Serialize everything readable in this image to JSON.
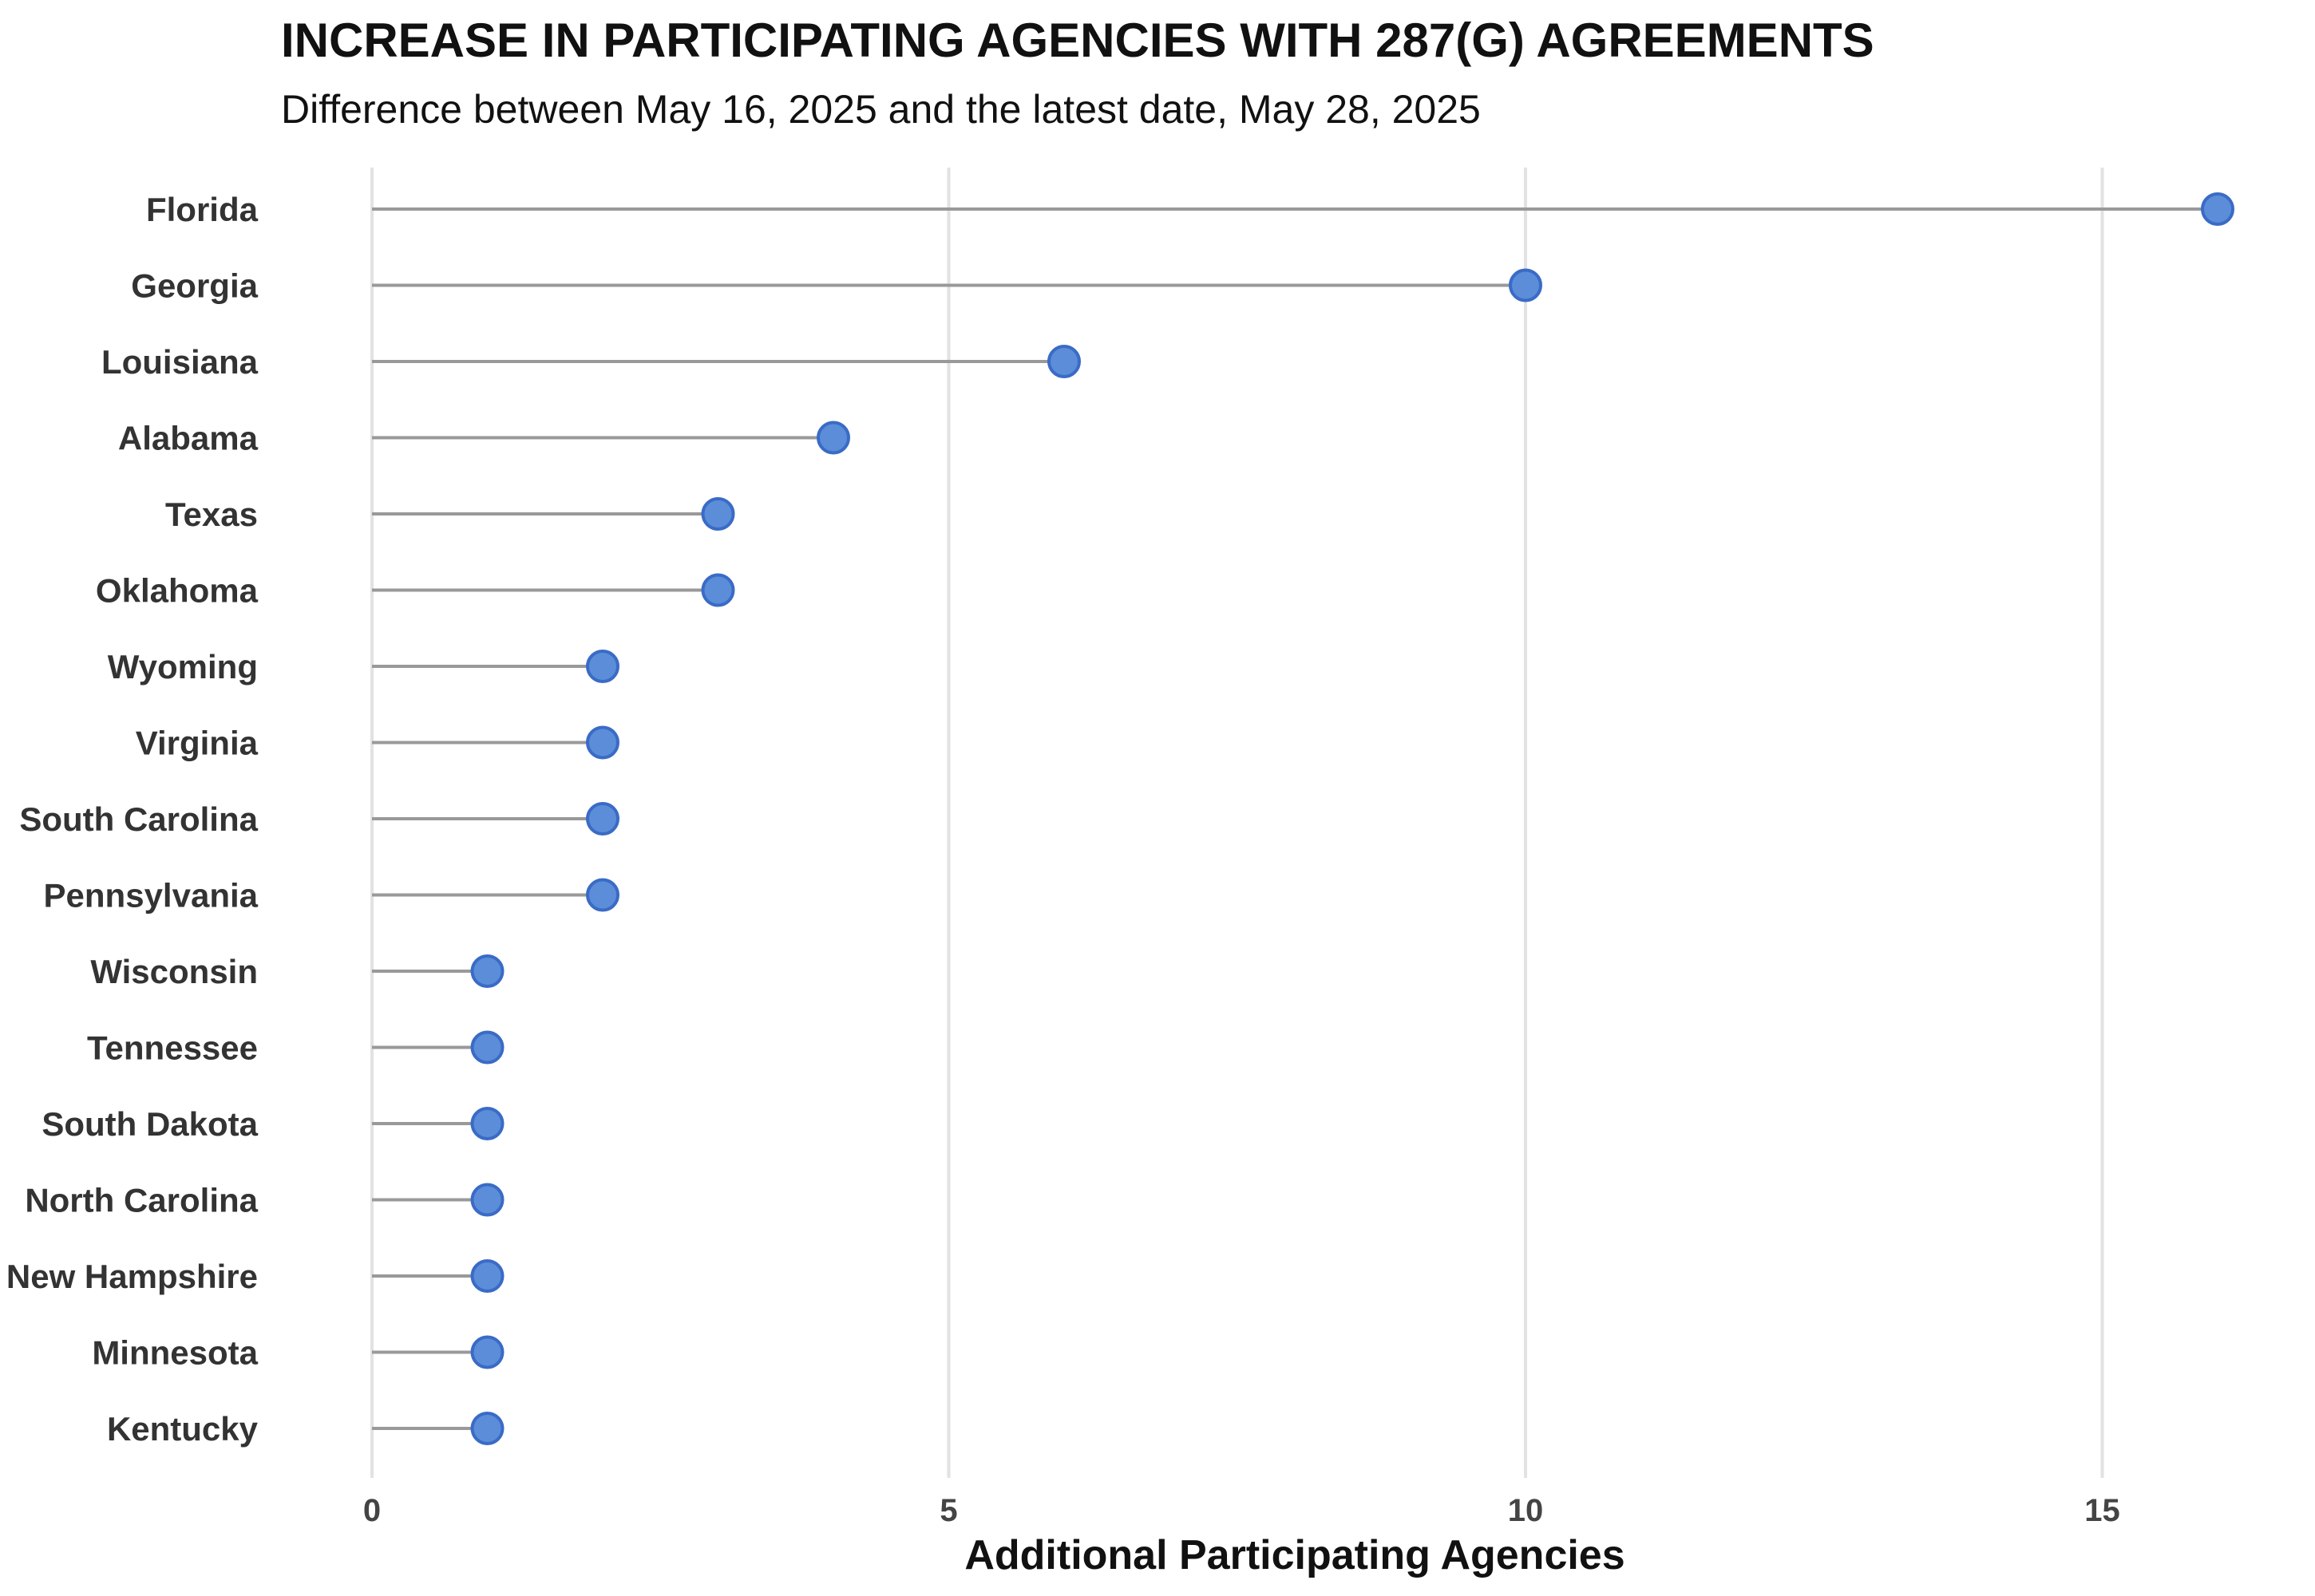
{
  "chart_data": {
    "type": "lollipop",
    "title": "INCREASE IN PARTICIPATING AGENCIES WITH 287(G) AGREEMENTS",
    "subtitle": "Difference between May 16, 2025 and the latest date, May 28, 2025",
    "xlabel": "Additional Participating Agencies",
    "ylabel": "",
    "xlim": [
      0,
      16
    ],
    "xticks": [
      0,
      5,
      10,
      15
    ],
    "grid": "vertical",
    "colors": {
      "marker_fill": "#5B8DD9",
      "marker_stroke": "#3A6BC6",
      "stem": "#999999",
      "grid": "#E2E2E2"
    },
    "categories": [
      "Florida",
      "Georgia",
      "Louisiana",
      "Alabama",
      "Texas",
      "Oklahoma",
      "Wyoming",
      "Virginia",
      "South Carolina",
      "Pennsylvania",
      "Wisconsin",
      "Tennessee",
      "South Dakota",
      "North Carolina",
      "New Hampshire",
      "Minnesota",
      "Kentucky"
    ],
    "values": [
      16,
      10,
      6,
      4,
      3,
      3,
      2,
      2,
      2,
      2,
      1,
      1,
      1,
      1,
      1,
      1,
      1
    ]
  }
}
